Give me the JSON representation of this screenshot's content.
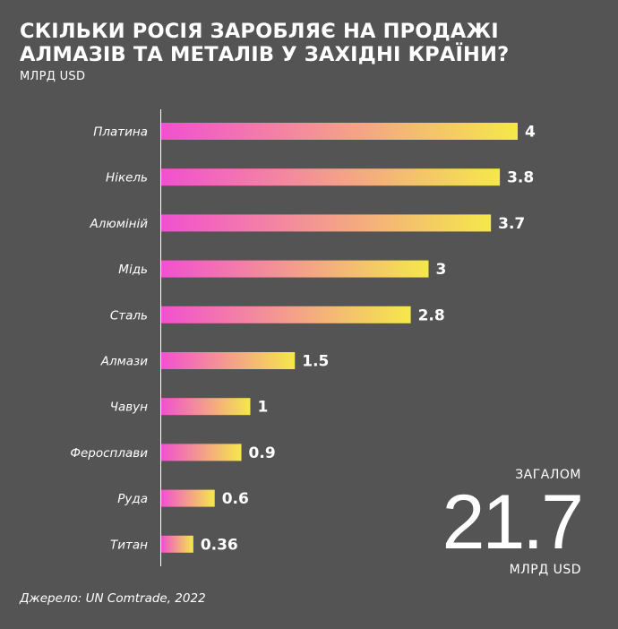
{
  "header": {
    "title_line1": "Скільки Росія заробляє на продажі",
    "title_line2": "алмазів та металів у західні країни?",
    "unit": "МЛРД USD"
  },
  "colors": {
    "background": "#545454",
    "bar_start": "#f250d0",
    "bar_end": "#f5e84a",
    "text": "#ffffff"
  },
  "chart_data": {
    "type": "bar",
    "orientation": "horizontal",
    "categories": [
      "Платина",
      "Нікель",
      "Алюміній",
      "Мідь",
      "Сталь",
      "Алмази",
      "Чавун",
      "Феросплави",
      "Руда",
      "Титан"
    ],
    "values": [
      4,
      3.8,
      3.7,
      3,
      2.8,
      1.5,
      1,
      0.9,
      0.6,
      0.36
    ],
    "value_labels": [
      "4",
      "3.8",
      "3.7",
      "3",
      "2.8",
      "1.5",
      "1",
      "0.9",
      "0.6",
      "0.36"
    ],
    "xlim": [
      0,
      4
    ],
    "grid": false,
    "ylabel": "МЛРД USD"
  },
  "total": {
    "label": "ЗАГАЛОМ",
    "value": "21.7",
    "unit": "МЛРД USD"
  },
  "source": "Джерело: UN Comtrade, 2022"
}
